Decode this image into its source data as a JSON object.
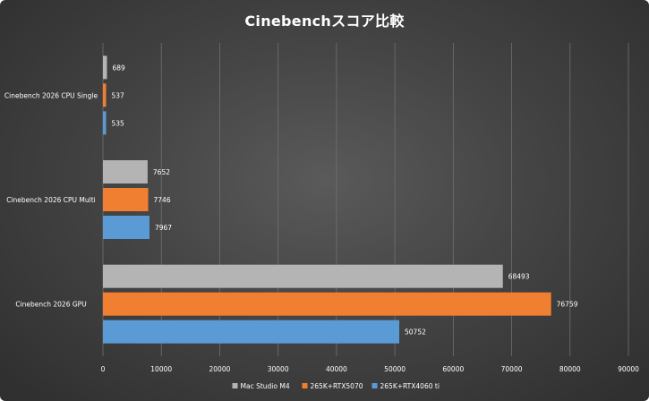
{
  "chart_data": {
    "type": "bar",
    "orientation": "horizontal",
    "title": "Cinebenchスコア比較",
    "categories": [
      "Cinebench 2026 CPU Single",
      "Cinebench 2026 CPU Multi",
      "Cinebench 2026 GPU"
    ],
    "series": [
      {
        "name": "Mac Studio M4",
        "color": "#b4b4b4",
        "values": [
          689,
          7652,
          68493
        ]
      },
      {
        "name": "265K+RTX5070",
        "color": "#f07f32",
        "values": [
          537,
          7746,
          76759
        ]
      },
      {
        "name": "265K+RTX4060 ti",
        "color": "#5b9bd5",
        "values": [
          535,
          7967,
          50752
        ]
      }
    ],
    "xlim": [
      0,
      90000
    ],
    "xticks": [
      0,
      10000,
      20000,
      30000,
      40000,
      50000,
      60000,
      70000,
      80000,
      90000
    ],
    "grid": true,
    "legend_position": "bottom"
  }
}
